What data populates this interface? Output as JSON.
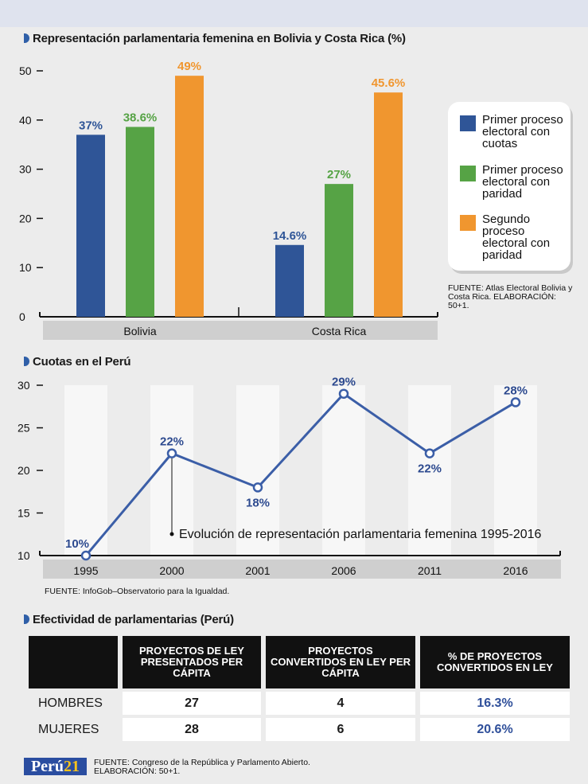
{
  "colors": {
    "blue": "#2f5597",
    "green": "#56a345",
    "orange": "#f0962f",
    "line": "#3b5ea7"
  },
  "bar_section": {
    "title": "Representación parlamentaria femenina en Bolivia y Costa Rica (%)"
  },
  "line_section": {
    "title": "Cuotas en el Perú"
  },
  "table_section": {
    "title": "Efectividad de parlamentarias (Perú)"
  },
  "legend": {
    "items": [
      {
        "label": "Primer proceso electoral con cuotas",
        "color": "#2f5597"
      },
      {
        "label": "Primer proceso electoral con paridad",
        "color": "#56a345"
      },
      {
        "label": "Segundo proceso electoral con paridad",
        "color": "#f0962f"
      }
    ]
  },
  "sources": {
    "bar": "FUENTE: Atlas Electoral Bolivia y Costa Rica. ELABORACIÓN: 50+1.",
    "line": "FUENTE: InfoGob–Observatorio para la Igualdad.",
    "table": "FUENTE: Congreso de la República y Parlamento Abierto. ELABORACIÓN: 50+1."
  },
  "chart_data": [
    {
      "type": "bar",
      "title": "Representación parlamentaria femenina en Bolivia y Costa Rica (%)",
      "categories": [
        "Bolivia",
        "Costa Rica"
      ],
      "series": [
        {
          "name": "Primer proceso electoral con cuotas",
          "values": [
            37,
            14.6
          ],
          "labels": [
            "37%",
            "14.6%"
          ]
        },
        {
          "name": "Primer proceso electoral con paridad",
          "values": [
            38.6,
            27
          ],
          "labels": [
            "38.6%",
            "27%"
          ]
        },
        {
          "name": "Segundo proceso electoral con paridad",
          "values": [
            49,
            45.6
          ],
          "labels": [
            "49%",
            "45.6%"
          ]
        }
      ],
      "ylim": [
        0,
        50
      ],
      "yticks": [
        0,
        10,
        20,
        30,
        40,
        50
      ],
      "xlabel": "",
      "ylabel": ""
    },
    {
      "type": "line",
      "title": "Cuotas en el Perú",
      "x": [
        "1995",
        "2000",
        "2001",
        "2006",
        "2011",
        "2016"
      ],
      "series": [
        {
          "name": "Evolución de representación parlamentaria femenina 1995-2016",
          "values": [
            10,
            22,
            18,
            29,
            22,
            28
          ],
          "labels": [
            "10%",
            "22%",
            "18%",
            "29%",
            "22%",
            "28%"
          ]
        }
      ],
      "ylim": [
        10,
        30
      ],
      "yticks": [
        10,
        15,
        20,
        25,
        30
      ],
      "annotation": "Evolución de representación parlamentaria femenina 1995-2016"
    },
    {
      "type": "table",
      "title": "Efectividad de parlamentarias (Perú)",
      "columns": [
        "PROYECTOS DE LEY PRESENTADOS PER CÁPITA",
        "PROYECTOS CONVERTIDOS EN LEY PER CÁPITA",
        "% DE PROYECTOS CONVERTIDOS EN LEY"
      ],
      "rows": [
        {
          "label": "HOMBRES",
          "values": [
            "27",
            "4",
            "16.3%"
          ]
        },
        {
          "label": "MUJERES",
          "values": [
            "28",
            "6",
            "20.6%"
          ]
        }
      ]
    }
  ],
  "logo": {
    "text_a": "Perú",
    "text_b": "21"
  }
}
